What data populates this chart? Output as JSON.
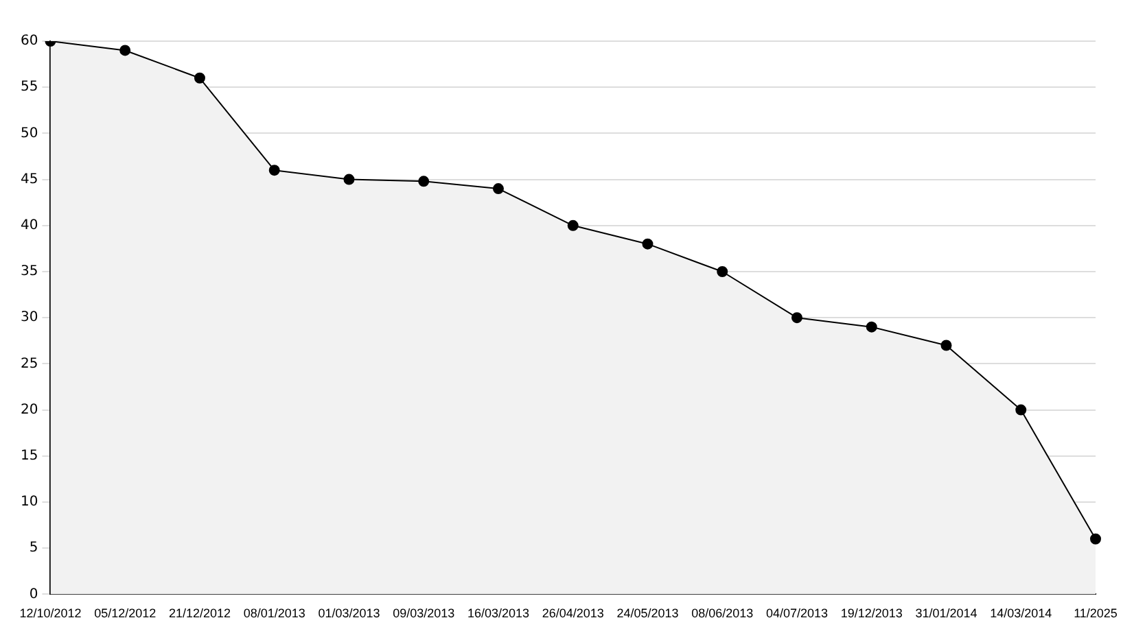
{
  "chart_data": {
    "type": "area",
    "categories": [
      "12/10/2012",
      "05/12/2012",
      "21/12/2012",
      "08/01/2013",
      "01/03/2013",
      "09/03/2013",
      "16/03/2013",
      "26/04/2013",
      "24/05/2013",
      "08/06/2013",
      "04/07/2013",
      "19/12/2013",
      "31/01/2014",
      "14/03/2014",
      "11/2025"
    ],
    "series": [
      {
        "color": "#000000",
        "values": [
          60,
          59,
          56,
          46,
          45,
          44.8,
          44,
          40,
          38,
          35,
          30,
          29,
          27,
          20,
          6
        ]
      }
    ],
    "ylim": [
      0,
      60
    ],
    "yticks": [
      0,
      5,
      10,
      15,
      20,
      25,
      30,
      35,
      40,
      45,
      50,
      55,
      60
    ],
    "grid": "y",
    "legend": false,
    "marker": "circle",
    "line_style": "solid"
  }
}
